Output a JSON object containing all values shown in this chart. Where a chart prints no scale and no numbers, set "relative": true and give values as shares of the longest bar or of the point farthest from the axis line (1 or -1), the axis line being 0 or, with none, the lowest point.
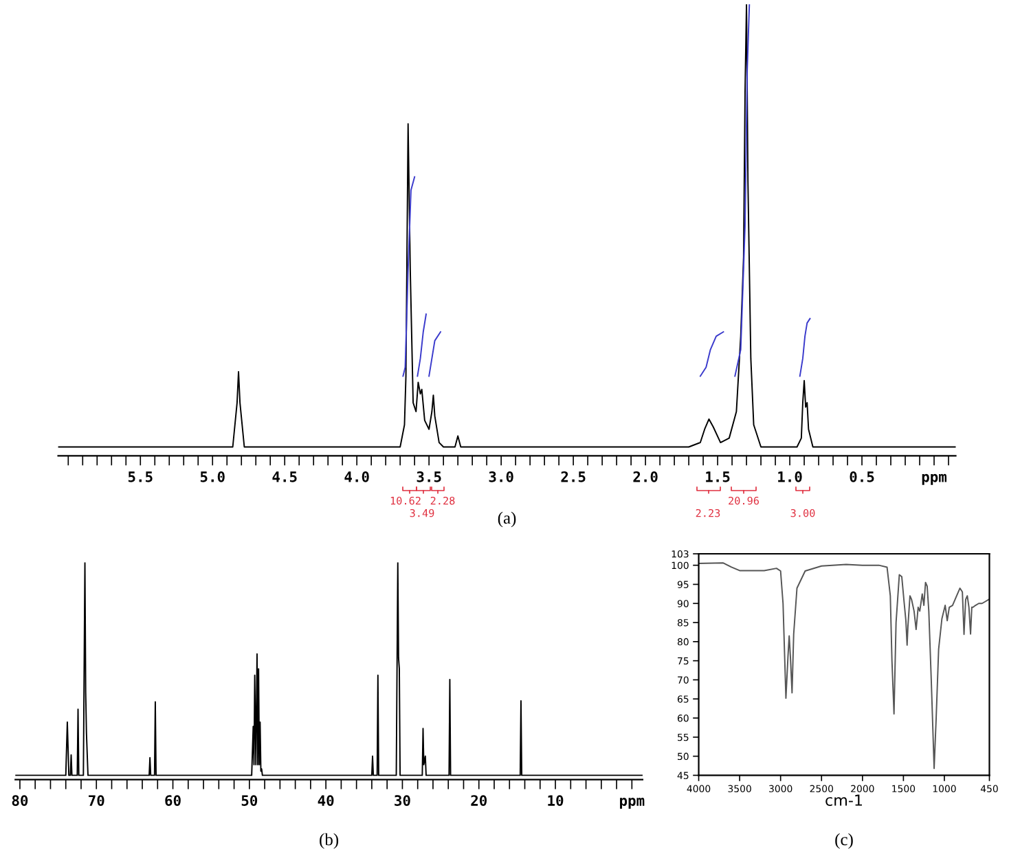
{
  "chart_data": [
    {
      "type": "line",
      "relative": true,
      "xlim": [
        6.07,
        -0.15
      ],
      "xticks": [
        {
          "value": 6.0,
          "label": null
        },
        {
          "value": 5.9,
          "label": null
        },
        {
          "value": 5.8,
          "label": null
        },
        {
          "value": 5.7,
          "label": null
        },
        {
          "value": 5.6,
          "label": null
        },
        5.5,
        {
          "value": 5.4,
          "label": null
        },
        {
          "value": 5.3,
          "label": null
        },
        {
          "value": 5.2,
          "label": null
        },
        {
          "value": 5.1,
          "label": null
        },
        {
          "value": 5.0,
          "label": "5.0"
        },
        {
          "value": 4.9,
          "label": null
        },
        {
          "value": 4.8,
          "label": null
        },
        {
          "value": 4.7,
          "label": null
        },
        {
          "value": 4.6,
          "label": null
        },
        4.5,
        {
          "value": 4.4,
          "label": null
        },
        {
          "value": 4.3,
          "label": null
        },
        {
          "value": 4.2,
          "label": null
        },
        {
          "value": 4.1,
          "label": null
        },
        {
          "value": 4.0,
          "label": "4.0"
        },
        {
          "value": 3.9,
          "label": null
        },
        {
          "value": 3.8,
          "label": null
        },
        {
          "value": 3.7,
          "label": null
        },
        {
          "value": 3.6,
          "label": null
        },
        3.5,
        {
          "value": 3.4,
          "label": null
        },
        {
          "value": 3.3,
          "label": null
        },
        {
          "value": 3.2,
          "label": null
        },
        {
          "value": 3.1,
          "label": null
        },
        {
          "value": 3.0,
          "label": "3.0"
        },
        {
          "value": 2.9,
          "label": null
        },
        {
          "value": 2.8,
          "label": null
        },
        {
          "value": 2.7,
          "label": null
        },
        {
          "value": 2.6,
          "label": null
        },
        2.5,
        {
          "value": 2.4,
          "label": null
        },
        {
          "value": 2.3,
          "label": null
        },
        {
          "value": 2.2,
          "label": null
        },
        {
          "value": 2.1,
          "label": null
        },
        {
          "value": 2.0,
          "label": "2.0"
        },
        {
          "value": 1.9,
          "label": null
        },
        {
          "value": 1.8,
          "label": null
        },
        {
          "value": 1.7,
          "label": null
        },
        {
          "value": 1.6,
          "label": null
        },
        1.5,
        {
          "value": 1.4,
          "label": null
        },
        {
          "value": 1.3,
          "label": null
        },
        {
          "value": 1.2,
          "label": null
        },
        {
          "value": 1.1,
          "label": null
        },
        {
          "value": 1.0,
          "label": "1.0"
        },
        {
          "value": 0.9,
          "label": null
        },
        {
          "value": 0.8,
          "label": null
        },
        {
          "value": 0.7,
          "label": null
        },
        {
          "value": 0.6,
          "label": null
        },
        0.5,
        {
          "value": 0.4,
          "label": null
        },
        {
          "value": 0.3,
          "label": null
        },
        {
          "value": 0.2,
          "label": null
        },
        {
          "value": 0.1,
          "label": null
        },
        {
          "value": 0.0,
          "label": "ppm"
        },
        {
          "value": -0.1,
          "label": null
        }
      ],
      "series": [
        {
          "color": "#000000",
          "x": [
            6.07,
            4.86,
            4.83,
            4.82,
            4.81,
            4.78,
            3.7,
            3.67,
            3.66,
            3.645,
            3.63,
            3.61,
            3.59,
            3.575,
            3.56,
            3.55,
            3.53,
            3.5,
            3.48,
            3.47,
            3.46,
            3.43,
            3.4,
            3.32,
            3.3,
            3.28,
            1.7,
            1.62,
            1.59,
            1.56,
            1.53,
            1.48,
            1.42,
            1.37,
            1.34,
            1.32,
            1.31,
            1.3,
            1.29,
            1.27,
            1.25,
            1.2,
            0.95,
            0.92,
            0.91,
            0.9,
            0.89,
            0.88,
            0.87,
            0.84,
            -0.15
          ],
          "values": [
            0,
            0,
            0.1,
            0.17,
            0.1,
            0,
            0,
            0.05,
            0.16,
            0.73,
            0.4,
            0.1,
            0.08,
            0.146,
            0.12,
            0.13,
            0.06,
            0.04,
            0.08,
            0.117,
            0.07,
            0.01,
            0,
            0,
            0.025,
            0,
            0,
            0.01,
            0.04,
            0.063,
            0.045,
            0.01,
            0.02,
            0.08,
            0.25,
            0.43,
            0.8,
            1.0,
            0.6,
            0.2,
            0.05,
            0,
            0,
            0.02,
            0.1,
            0.15,
            0.09,
            0.1,
            0.04,
            0,
            0
          ]
        },
        {
          "color": "#3a3acc",
          "x": [
            3.68,
            3.665,
            3.645,
            3.625,
            3.6,
            3.59,
            3.58,
            3.56,
            3.54,
            3.52,
            3.51,
            3.5,
            3.48,
            3.46,
            3.42,
            2.0,
            1.62,
            1.58,
            1.55,
            1.51,
            1.46,
            1.42,
            1.38,
            1.34,
            1.31,
            1.295,
            1.28,
            1.1,
            0.93,
            0.91,
            0.895,
            0.88,
            0.86
          ],
          "values": [
            0.16,
            0.18,
            0.4,
            0.58,
            0.61,
            null,
            0.16,
            0.2,
            0.26,
            0.3,
            null,
            0.16,
            0.2,
            0.24,
            0.26,
            null,
            0.16,
            0.18,
            0.22,
            0.25,
            0.26,
            null,
            0.16,
            0.22,
            0.5,
            0.85,
            1.0,
            null,
            0.16,
            0.2,
            0.25,
            0.28,
            0.29
          ]
        }
      ],
      "annotations": [
        "10.62",
        "3.49",
        "2.28",
        "2.23",
        "20.96",
        "3.00",
        "(a)"
      ]
    },
    {
      "type": "line",
      "relative": true,
      "xlim": [
        80.6,
        -1.4
      ],
      "xticks": [
        80,
        {
          "value": 78,
          "label": null
        },
        {
          "value": 76,
          "label": null
        },
        {
          "value": 74,
          "label": null
        },
        {
          "value": 72,
          "label": null
        },
        70,
        {
          "value": 68,
          "label": null
        },
        {
          "value": 66,
          "label": null
        },
        {
          "value": 64,
          "label": null
        },
        {
          "value": 62,
          "label": null
        },
        60,
        {
          "value": 58,
          "label": null
        },
        {
          "value": 56,
          "label": null
        },
        {
          "value": 54,
          "label": null
        },
        {
          "value": 52,
          "label": null
        },
        50,
        {
          "value": 48,
          "label": null
        },
        {
          "value": 46,
          "label": null
        },
        {
          "value": 44,
          "label": null
        },
        {
          "value": 42,
          "label": null
        },
        40,
        {
          "value": 38,
          "label": null
        },
        {
          "value": 36,
          "label": null
        },
        {
          "value": 34,
          "label": null
        },
        {
          "value": 32,
          "label": null
        },
        30,
        {
          "value": 28,
          "label": null
        },
        {
          "value": 26,
          "label": null
        },
        {
          "value": 24,
          "label": null
        },
        {
          "value": 22,
          "label": null
        },
        20,
        {
          "value": 18,
          "label": null
        },
        {
          "value": 16,
          "label": null
        },
        {
          "value": 14,
          "label": null
        },
        {
          "value": 12,
          "label": null
        },
        10,
        {
          "value": 8,
          "label": null
        },
        {
          "value": 6,
          "label": null
        },
        {
          "value": 4,
          "label": null
        },
        {
          "value": 2,
          "label": null
        },
        {
          "value": 0,
          "label": "ppm"
        }
      ],
      "series": [
        {
          "color": "#000000",
          "x": [
            80.6,
            74.0,
            73.8,
            73.6,
            73.4,
            73.3,
            73.2,
            72.5,
            72.4,
            72.3,
            71.7,
            71.5,
            71.4,
            71.3,
            71.1,
            63.1,
            63.0,
            62.9,
            62.4,
            62.3,
            62.2,
            49.7,
            49.5,
            49.4,
            49.3,
            49.15,
            49.0,
            48.9,
            48.8,
            48.7,
            48.6,
            48.5,
            48.4,
            48.3,
            34.0,
            33.9,
            33.8,
            33.3,
            33.2,
            33.1,
            30.8,
            30.6,
            30.5,
            30.4,
            30.3,
            27.4,
            27.3,
            27.2,
            27.0,
            26.9,
            23.9,
            23.8,
            23.7,
            14.6,
            14.5,
            14.4,
            -1.4
          ],
          "values": [
            0,
            0,
            0.25,
            0,
            0,
            0.096,
            0,
            0,
            0.31,
            0,
            0,
            1.0,
            0.39,
            0.2,
            0,
            0,
            0.083,
            0,
            0,
            0.345,
            0,
            0,
            0.23,
            0.05,
            0.47,
            0.05,
            0.57,
            0.05,
            0.5,
            0.05,
            0.25,
            0.02,
            0.03,
            0,
            0,
            0.09,
            0,
            0,
            0.47,
            0,
            0,
            1.0,
            0.55,
            0.5,
            0,
            0,
            0.22,
            0.05,
            0.09,
            0,
            0,
            0.45,
            0,
            0,
            0.35,
            0,
            0
          ]
        }
      ],
      "annotations": [
        "(b)"
      ]
    },
    {
      "type": "line",
      "xlabel": "cm-1",
      "xlim": [
        4000,
        450
      ],
      "xticks": [
        4000,
        3500,
        3000,
        2500,
        2000,
        1500,
        1000,
        450
      ],
      "ylim": [
        45,
        103
      ],
      "yticks": [
        45,
        50,
        55,
        60,
        65,
        70,
        75,
        80,
        85,
        90,
        95,
        100,
        103
      ],
      "series": [
        {
          "color": "#555555",
          "x": [
            4000,
            3700,
            3600,
            3500,
            3200,
            3050,
            3000,
            2970,
            2935,
            2910,
            2895,
            2880,
            2860,
            2840,
            2800,
            2700,
            2500,
            2200,
            2000,
            1800,
            1700,
            1660,
            1640,
            1615,
            1590,
            1550,
            1520,
            1490,
            1470,
            1455,
            1445,
            1420,
            1400,
            1370,
            1345,
            1320,
            1300,
            1270,
            1250,
            1230,
            1210,
            1190,
            1160,
            1125,
            1100,
            1070,
            1030,
            990,
            965,
            940,
            900,
            850,
            810,
            780,
            760,
            740,
            720,
            700,
            680,
            665,
            650,
            620,
            580,
            540,
            500,
            460
          ],
          "values": [
            100.5,
            100.6,
            99.5,
            98.6,
            98.6,
            99.2,
            98.5,
            90,
            65.2,
            76,
            81.5,
            76,
            66.6,
            82,
            94,
            98.5,
            99.8,
            100.2,
            100,
            100,
            99.5,
            92,
            75,
            61.1,
            85,
            97.5,
            97,
            90,
            85.5,
            79.1,
            84,
            92,
            91,
            88,
            83.2,
            89,
            88,
            92.5,
            89.5,
            95.5,
            94.5,
            88,
            70,
            46.8,
            60,
            78,
            86,
            89.5,
            85.5,
            89,
            89.5,
            92,
            94,
            93,
            81.9,
            91,
            92,
            89,
            82,
            89,
            89,
            89.5,
            90,
            90,
            90.5,
            91
          ]
        }
      ],
      "annotations": [
        "(c)"
      ]
    }
  ]
}
